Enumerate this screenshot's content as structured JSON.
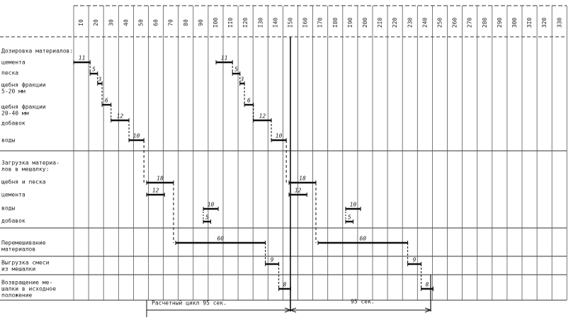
{
  "header": {
    "columns": [
      "I0",
      "20",
      "30",
      "40",
      "50",
      "60",
      "70",
      "80",
      "90",
      "I00",
      "II0",
      "I20",
      "I30",
      "I40",
      "I50",
      "I60",
      "I70",
      "I80",
      "I90",
      "200",
      "2I0",
      "220",
      "230",
      "240",
      "250",
      "260",
      "270",
      "280",
      "290",
      "300",
      "3I0",
      "320",
      "330"
    ]
  },
  "rows": [
    {
      "lines": [
        "Дозировка материалов:"
      ],
      "y": 0
    },
    {
      "lines": [
        "цемента"
      ]
    },
    {
      "lines": [
        "песка"
      ]
    },
    {
      "lines": [
        "щебня фракции",
        "5-20 мм"
      ]
    },
    {
      "lines": [
        "щебня фракции",
        "20-40 мм"
      ]
    },
    {
      "lines": [
        "добавок"
      ]
    },
    {
      "lines": [
        "воды"
      ]
    },
    {
      "lines": [
        "Загрузка материа-",
        "лов в мешалку:"
      ]
    },
    {
      "lines": [
        "щебня и песка"
      ]
    },
    {
      "lines": [
        "цемента"
      ]
    },
    {
      "lines": [
        "воды"
      ]
    },
    {
      "lines": [
        "добавок"
      ]
    },
    {
      "lines": [
        "Перемешивание",
        "материалов"
      ]
    },
    {
      "lines": [
        "Выгрузка смеси",
        "из мешалки"
      ]
    },
    {
      "lines": [
        "Возвращение ме-",
        "шалки в исходное",
        "положение"
      ]
    }
  ],
  "cycles": [
    {
      "durations": [
        "11",
        "5",
        "3",
        "6",
        "12",
        "10",
        "18",
        "12",
        "10",
        "5",
        "60",
        "9",
        "8"
      ]
    },
    {
      "durations": [
        "11",
        "5",
        "3",
        "6",
        "12",
        "10",
        "18",
        "12",
        "10",
        "5",
        "60",
        "9",
        "8"
      ]
    }
  ],
  "footer": {
    "cycle_label": "Расчетный цикл 95 сек.",
    "second_label": "95 сек."
  }
}
